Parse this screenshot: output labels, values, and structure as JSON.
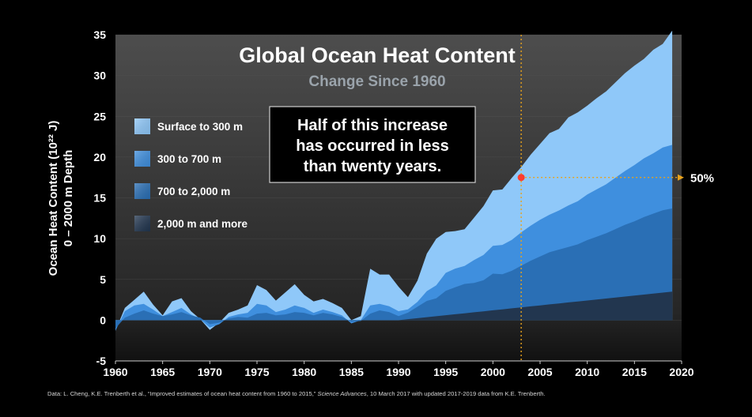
{
  "chart_data": {
    "type": "area",
    "title": "Global Ocean Heat Content",
    "subtitle": "Change Since 1960",
    "ylabel": "Ocean Heat Content (10²² J)",
    "ylabel2": "0 – 2000 m Depth",
    "xlim": [
      1960,
      2020
    ],
    "ylim": [
      -5,
      35
    ],
    "xticks": [
      "1960",
      "1965",
      "1970",
      "1975",
      "1980",
      "1985",
      "1990",
      "1995",
      "2000",
      "2005",
      "2010",
      "2015",
      "2020"
    ],
    "yticks": [
      "-5",
      "0",
      "5",
      "10",
      "15",
      "20",
      "25",
      "30",
      "35"
    ],
    "stacked": true,
    "series": [
      {
        "name": "2,000 m and more",
        "color": "#22364f",
        "x": [
          1960,
          1990,
          2019
        ],
        "values": [
          0,
          0,
          3.5
        ]
      },
      {
        "name": "700 to 2,000 m",
        "color": "#2a6fb5",
        "x": [
          1960,
          1961,
          1962,
          1963,
          1964,
          1965,
          1966,
          1967,
          1968,
          1969,
          1970,
          1971,
          1972,
          1973,
          1974,
          1975,
          1976,
          1977,
          1978,
          1979,
          1980,
          1981,
          1982,
          1983,
          1984,
          1985,
          1986,
          1987,
          1988,
          1989,
          1990,
          1991,
          1992,
          1993,
          1994,
          1995,
          1996,
          1997,
          1998,
          1999,
          2000,
          2001,
          2002,
          2003,
          2004,
          2005,
          2006,
          2007,
          2008,
          2009,
          2010,
          2011,
          2012,
          2013,
          2014,
          2015,
          2016,
          2017,
          2018,
          2019
        ],
        "values": [
          -1,
          0.3,
          0.8,
          1.2,
          0.8,
          0.5,
          0.7,
          1.0,
          0.6,
          0.3,
          -0.5,
          -0.3,
          0.2,
          0.4,
          0.3,
          0.8,
          0.9,
          0.6,
          0.7,
          1.0,
          0.9,
          0.6,
          0.9,
          0.7,
          0.4,
          -0.2,
          -0.1,
          0.8,
          1.2,
          1.0,
          0.5,
          0.8,
          1.4,
          2.0,
          2.2,
          3.0,
          3.3,
          3.6,
          3.6,
          3.8,
          4.5,
          4.3,
          4.6,
          5.1,
          5.6,
          6.0,
          6.4,
          6.6,
          6.8,
          7.0,
          7.4,
          7.7,
          8.0,
          8.4,
          8.8,
          9.1,
          9.5,
          9.8,
          10.1,
          10.2
        ]
      },
      {
        "name": "300 to 700 m",
        "color": "#3f8fde",
        "x": [
          1960,
          1961,
          1962,
          1963,
          1964,
          1965,
          1966,
          1967,
          1968,
          1969,
          1970,
          1971,
          1972,
          1973,
          1974,
          1975,
          1976,
          1977,
          1978,
          1979,
          1980,
          1981,
          1982,
          1983,
          1984,
          1985,
          1986,
          1987,
          1988,
          1989,
          1990,
          1991,
          1992,
          1993,
          1994,
          1995,
          1996,
          1997,
          1998,
          1999,
          2000,
          2001,
          2002,
          2003,
          2004,
          2005,
          2006,
          2007,
          2008,
          2009,
          2010,
          2011,
          2012,
          2013,
          2014,
          2015,
          2016,
          2017,
          2018,
          2019
        ],
        "values": [
          -0.3,
          0.8,
          1.0,
          0.8,
          0.5,
          0.0,
          0.3,
          0.5,
          0.1,
          -0.2,
          -0.4,
          -0.2,
          0.2,
          0.3,
          0.6,
          1.2,
          0.9,
          0.4,
          0.6,
          0.8,
          0.6,
          0.3,
          0.4,
          0.3,
          0.2,
          -0.2,
          0.1,
          1.0,
          0.8,
          0.7,
          0.6,
          0.4,
          0.6,
          1.2,
          1.6,
          2.2,
          2.3,
          2.2,
          2.8,
          3.1,
          3.4,
          3.6,
          3.8,
          4.1,
          4.3,
          4.5,
          4.6,
          4.8,
          5.1,
          5.3,
          5.6,
          5.8,
          6.0,
          6.3,
          6.6,
          6.9,
          7.2,
          7.4,
          7.7,
          7.8
        ]
      },
      {
        "name": "Surface to 300 m",
        "color": "#8fc8f9",
        "x": [
          1960,
          1961,
          1962,
          1963,
          1964,
          1965,
          1966,
          1967,
          1968,
          1969,
          1970,
          1971,
          1972,
          1973,
          1974,
          1975,
          1976,
          1977,
          1978,
          1979,
          1980,
          1981,
          1982,
          1983,
          1984,
          1985,
          1986,
          1987,
          1988,
          1989,
          1990,
          1991,
          1992,
          1993,
          1994,
          1995,
          1996,
          1997,
          1998,
          1999,
          2000,
          2001,
          2002,
          2003,
          2004,
          2005,
          2006,
          2007,
          2008,
          2009,
          2010,
          2011,
          2012,
          2013,
          2014,
          2015,
          2016,
          2017,
          2018,
          2019
        ],
        "values": [
          0,
          0.4,
          0.7,
          1.5,
          0.6,
          0.1,
          1.3,
          1.2,
          0.4,
          0.0,
          -0.3,
          0.2,
          0.5,
          0.6,
          0.9,
          2.3,
          1.9,
          1.4,
          2.1,
          2.6,
          1.6,
          1.4,
          1.3,
          1.1,
          0.9,
          0.4,
          0.5,
          4.5,
          3.6,
          3.9,
          3.0,
          1.5,
          2.6,
          4.6,
          5.7,
          5.0,
          4.6,
          4.5,
          5.2,
          6.0,
          6.8,
          6.8,
          7.6,
          8.0,
          8.7,
          9.3,
          10.0,
          10.0,
          10.8,
          10.9,
          10.9,
          11.2,
          11.4,
          11.7,
          12.0,
          12.2,
          12.2,
          12.7,
          12.7,
          14.0
        ]
      }
    ],
    "annotation": {
      "text_lines": [
        "Half of this increase",
        "has occurred in less",
        "than twenty years."
      ]
    },
    "marker": {
      "x": 2003,
      "y": 17.5,
      "label": "50%"
    },
    "source": "Data: L. Cheng, K.E. Trenberth et al., “Improved estimates of ocean heat content from 1960 to 2015,” Science Advances, 10 March 2017 with updated 2017-2019 data from K.E. Trenberth.",
    "source_parts": {
      "pre": "Data: L. Cheng, K.E. Trenberth et al., “Improved estimates of ocean heat content from 1960 to 2015,” ",
      "journal": "Science Advances",
      "post": ", 10 March 2017 with updated 2017-2019 data from K.E. Trenberth."
    },
    "colors": {
      "background": "#000000",
      "plot_top": "#4a4a4a",
      "plot_bottom": "#151515",
      "marker": "#ff3b30",
      "guide": "#e8a21c"
    }
  }
}
